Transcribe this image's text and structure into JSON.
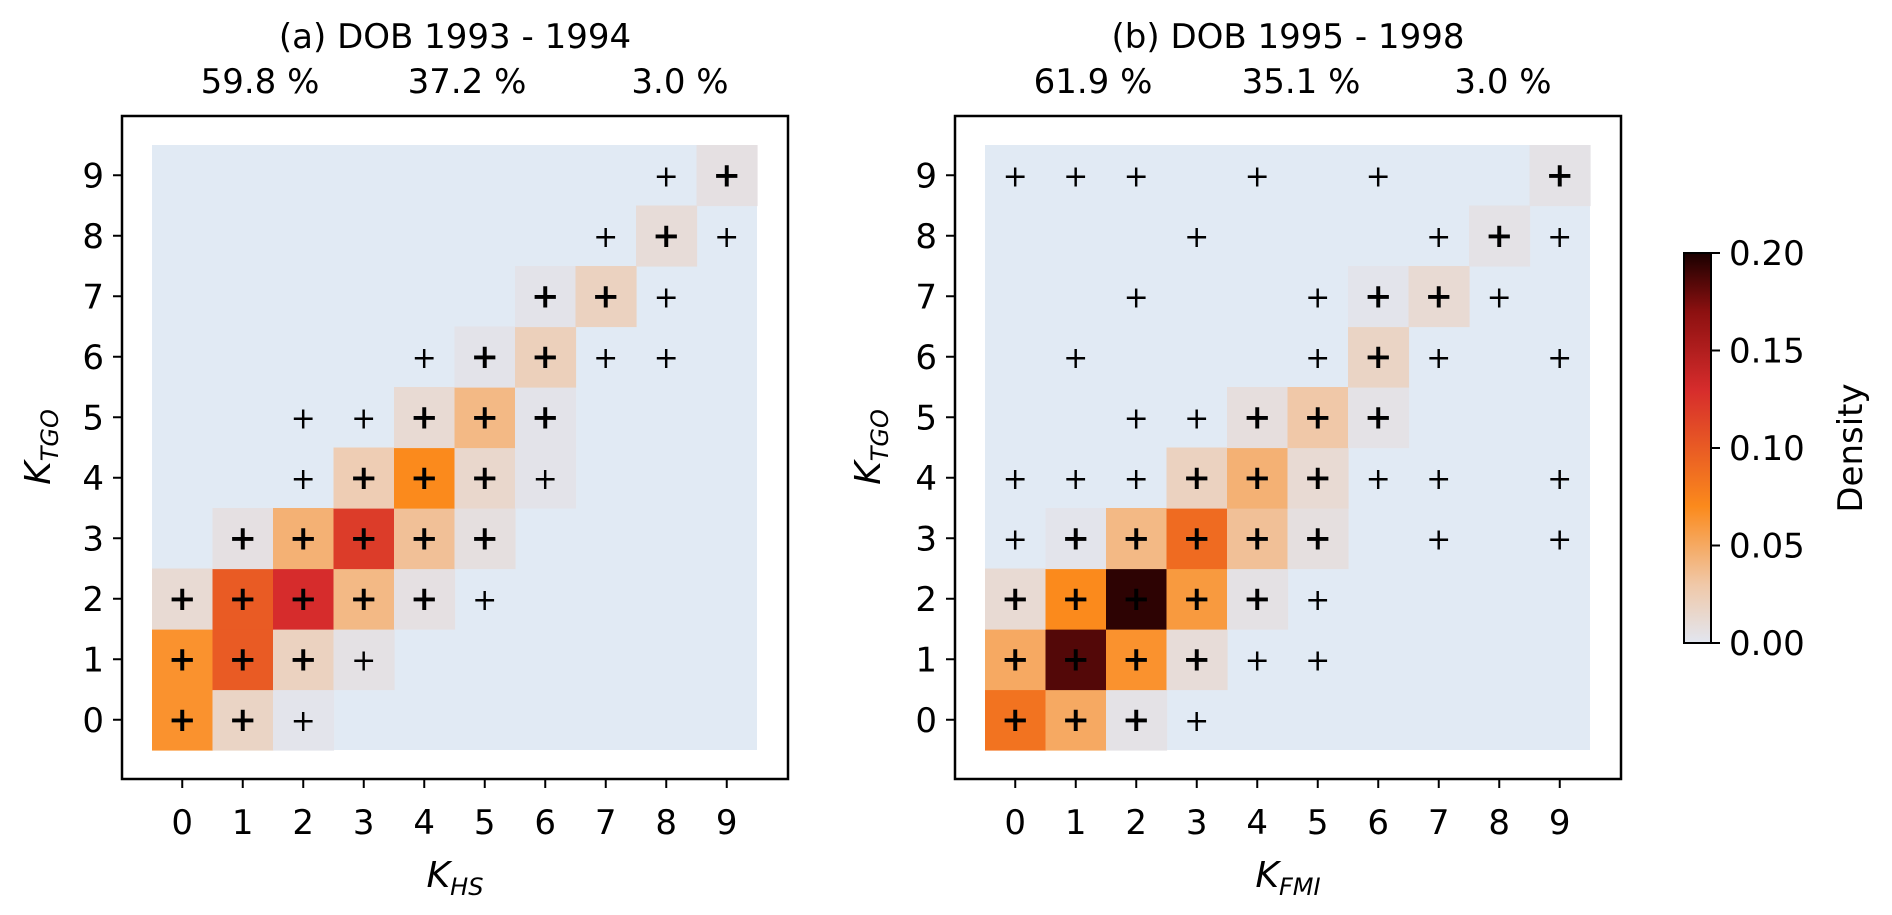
{
  "chart_data": [
    {
      "type": "heatmap",
      "title": "(a) DOB 1993 - 1994",
      "percentages": [
        "59.8 %",
        "37.2 %",
        "3.0 %"
      ],
      "xlabel_main": "K",
      "xlabel_sub": "HS",
      "ylabel_main": "K",
      "ylabel_sub": "TGO",
      "x_ticks": [
        "0",
        "1",
        "2",
        "3",
        "4",
        "5",
        "6",
        "7",
        "8",
        "9"
      ],
      "y_ticks": [
        "0",
        "1",
        "2",
        "3",
        "4",
        "5",
        "6",
        "7",
        "8",
        "9"
      ],
      "cells": [
        {
          "x": 0,
          "y": 0,
          "v": 0.065,
          "m": 2
        },
        {
          "x": 1,
          "y": 0,
          "v": 0.018,
          "m": 2
        },
        {
          "x": 2,
          "y": 0,
          "v": 0.002,
          "m": 1
        },
        {
          "x": 0,
          "y": 1,
          "v": 0.065,
          "m": 2
        },
        {
          "x": 1,
          "y": 1,
          "v": 0.1,
          "m": 2
        },
        {
          "x": 2,
          "y": 1,
          "v": 0.02,
          "m": 2
        },
        {
          "x": 3,
          "y": 1,
          "v": 0.005,
          "m": 1
        },
        {
          "x": 0,
          "y": 2,
          "v": 0.012,
          "m": 2
        },
        {
          "x": 1,
          "y": 2,
          "v": 0.1,
          "m": 2
        },
        {
          "x": 2,
          "y": 2,
          "v": 0.13,
          "m": 2
        },
        {
          "x": 3,
          "y": 2,
          "v": 0.04,
          "m": 2
        },
        {
          "x": 4,
          "y": 2,
          "v": 0.006,
          "m": 2
        },
        {
          "x": 5,
          "y": 2,
          "v": 0.0,
          "m": 1
        },
        {
          "x": 1,
          "y": 3,
          "v": 0.006,
          "m": 2
        },
        {
          "x": 2,
          "y": 3,
          "v": 0.045,
          "m": 2
        },
        {
          "x": 3,
          "y": 3,
          "v": 0.12,
          "m": 2
        },
        {
          "x": 4,
          "y": 3,
          "v": 0.035,
          "m": 2
        },
        {
          "x": 5,
          "y": 3,
          "v": 0.007,
          "m": 2
        },
        {
          "x": 2,
          "y": 4,
          "v": 0.0,
          "m": 1
        },
        {
          "x": 3,
          "y": 4,
          "v": 0.025,
          "m": 2
        },
        {
          "x": 4,
          "y": 4,
          "v": 0.07,
          "m": 2
        },
        {
          "x": 5,
          "y": 4,
          "v": 0.015,
          "m": 2
        },
        {
          "x": 6,
          "y": 4,
          "v": 0.003,
          "m": 1
        },
        {
          "x": 2,
          "y": 5,
          "v": 0.0,
          "m": 1
        },
        {
          "x": 3,
          "y": 5,
          "v": 0.0,
          "m": 1
        },
        {
          "x": 4,
          "y": 5,
          "v": 0.012,
          "m": 2
        },
        {
          "x": 5,
          "y": 5,
          "v": 0.04,
          "m": 2
        },
        {
          "x": 6,
          "y": 5,
          "v": 0.003,
          "m": 2
        },
        {
          "x": 4,
          "y": 6,
          "v": 0.0,
          "m": 1
        },
        {
          "x": 5,
          "y": 6,
          "v": 0.003,
          "m": 2
        },
        {
          "x": 6,
          "y": 6,
          "v": 0.022,
          "m": 2
        },
        {
          "x": 7,
          "y": 6,
          "v": 0.0,
          "m": 1
        },
        {
          "x": 8,
          "y": 6,
          "v": 0.0,
          "m": 1
        },
        {
          "x": 6,
          "y": 7,
          "v": 0.003,
          "m": 2
        },
        {
          "x": 7,
          "y": 7,
          "v": 0.02,
          "m": 2
        },
        {
          "x": 8,
          "y": 7,
          "v": 0.0,
          "m": 1
        },
        {
          "x": 7,
          "y": 8,
          "v": 0.0,
          "m": 1
        },
        {
          "x": 8,
          "y": 8,
          "v": 0.01,
          "m": 2
        },
        {
          "x": 9,
          "y": 8,
          "v": 0.0,
          "m": 1
        },
        {
          "x": 8,
          "y": 9,
          "v": 0.0,
          "m": 1
        },
        {
          "x": 9,
          "y": 9,
          "v": 0.006,
          "m": 2
        }
      ]
    },
    {
      "type": "heatmap",
      "title": "(b) DOB 1995 - 1998",
      "percentages": [
        "61.9 %",
        "35.1 %",
        "3.0 %"
      ],
      "xlabel_main": "K",
      "xlabel_sub": "FMI",
      "ylabel_main": "K",
      "ylabel_sub": "TGO",
      "x_ticks": [
        "0",
        "1",
        "2",
        "3",
        "4",
        "5",
        "6",
        "7",
        "8",
        "9"
      ],
      "y_ticks": [
        "0",
        "1",
        "2",
        "3",
        "4",
        "5",
        "6",
        "7",
        "8",
        "9"
      ],
      "cells": [
        {
          "x": 0,
          "y": 0,
          "v": 0.085,
          "m": 2
        },
        {
          "x": 1,
          "y": 0,
          "v": 0.05,
          "m": 2
        },
        {
          "x": 2,
          "y": 0,
          "v": 0.004,
          "m": 2
        },
        {
          "x": 3,
          "y": 0,
          "v": 0.0,
          "m": 1
        },
        {
          "x": 0,
          "y": 1,
          "v": 0.05,
          "m": 2
        },
        {
          "x": 1,
          "y": 1,
          "v": 0.185,
          "m": 2
        },
        {
          "x": 2,
          "y": 1,
          "v": 0.065,
          "m": 2
        },
        {
          "x": 3,
          "y": 1,
          "v": 0.01,
          "m": 2
        },
        {
          "x": 4,
          "y": 1,
          "v": 0.0,
          "m": 1
        },
        {
          "x": 5,
          "y": 1,
          "v": 0.0,
          "m": 1
        },
        {
          "x": 0,
          "y": 2,
          "v": 0.012,
          "m": 2
        },
        {
          "x": 1,
          "y": 2,
          "v": 0.07,
          "m": 2
        },
        {
          "x": 2,
          "y": 2,
          "v": 0.195,
          "m": 2
        },
        {
          "x": 3,
          "y": 2,
          "v": 0.06,
          "m": 2
        },
        {
          "x": 4,
          "y": 2,
          "v": 0.005,
          "m": 2
        },
        {
          "x": 5,
          "y": 2,
          "v": 0.0,
          "m": 1
        },
        {
          "x": 0,
          "y": 3,
          "v": 0.0,
          "m": 1
        },
        {
          "x": 1,
          "y": 3,
          "v": 0.002,
          "m": 2
        },
        {
          "x": 2,
          "y": 3,
          "v": 0.04,
          "m": 2
        },
        {
          "x": 3,
          "y": 3,
          "v": 0.09,
          "m": 2
        },
        {
          "x": 4,
          "y": 3,
          "v": 0.035,
          "m": 2
        },
        {
          "x": 5,
          "y": 3,
          "v": 0.007,
          "m": 2
        },
        {
          "x": 7,
          "y": 3,
          "v": 0.0,
          "m": 1
        },
        {
          "x": 9,
          "y": 3,
          "v": 0.0,
          "m": 1
        },
        {
          "x": 0,
          "y": 4,
          "v": 0.0,
          "m": 1
        },
        {
          "x": 1,
          "y": 4,
          "v": 0.0,
          "m": 1
        },
        {
          "x": 2,
          "y": 4,
          "v": 0.0,
          "m": 1
        },
        {
          "x": 3,
          "y": 4,
          "v": 0.02,
          "m": 2
        },
        {
          "x": 4,
          "y": 4,
          "v": 0.045,
          "m": 2
        },
        {
          "x": 5,
          "y": 4,
          "v": 0.012,
          "m": 2
        },
        {
          "x": 6,
          "y": 4,
          "v": 0.0,
          "m": 1
        },
        {
          "x": 7,
          "y": 4,
          "v": 0.0,
          "m": 1
        },
        {
          "x": 9,
          "y": 4,
          "v": 0.0,
          "m": 1
        },
        {
          "x": 2,
          "y": 5,
          "v": 0.0,
          "m": 1
        },
        {
          "x": 3,
          "y": 5,
          "v": 0.0,
          "m": 1
        },
        {
          "x": 4,
          "y": 5,
          "v": 0.008,
          "m": 2
        },
        {
          "x": 5,
          "y": 5,
          "v": 0.03,
          "m": 2
        },
        {
          "x": 6,
          "y": 5,
          "v": 0.004,
          "m": 2
        },
        {
          "x": 1,
          "y": 6,
          "v": 0.0,
          "m": 1
        },
        {
          "x": 5,
          "y": 6,
          "v": 0.0,
          "m": 1
        },
        {
          "x": 6,
          "y": 6,
          "v": 0.018,
          "m": 2
        },
        {
          "x": 7,
          "y": 6,
          "v": 0.0,
          "m": 1
        },
        {
          "x": 9,
          "y": 6,
          "v": 0.0,
          "m": 1
        },
        {
          "x": 2,
          "y": 7,
          "v": 0.0,
          "m": 1
        },
        {
          "x": 5,
          "y": 7,
          "v": 0.0,
          "m": 1
        },
        {
          "x": 6,
          "y": 7,
          "v": 0.002,
          "m": 2
        },
        {
          "x": 7,
          "y": 7,
          "v": 0.012,
          "m": 2
        },
        {
          "x": 8,
          "y": 7,
          "v": 0.0,
          "m": 1
        },
        {
          "x": 3,
          "y": 8,
          "v": 0.0,
          "m": 1
        },
        {
          "x": 7,
          "y": 8,
          "v": 0.0,
          "m": 1
        },
        {
          "x": 8,
          "y": 8,
          "v": 0.004,
          "m": 2
        },
        {
          "x": 9,
          "y": 8,
          "v": 0.0,
          "m": 1
        },
        {
          "x": 0,
          "y": 9,
          "v": 0.0,
          "m": 1
        },
        {
          "x": 1,
          "y": 9,
          "v": 0.0,
          "m": 1
        },
        {
          "x": 2,
          "y": 9,
          "v": 0.0,
          "m": 1
        },
        {
          "x": 4,
          "y": 9,
          "v": 0.0,
          "m": 1
        },
        {
          "x": 6,
          "y": 9,
          "v": 0.0,
          "m": 1
        },
        {
          "x": 9,
          "y": 9,
          "v": 0.004,
          "m": 2
        }
      ]
    }
  ],
  "colorbar": {
    "label": "Density",
    "min": 0.0,
    "max": 0.2,
    "ticks": [
      "0.00",
      "0.05",
      "0.10",
      "0.15",
      "0.20"
    ],
    "tick_values": [
      0.0,
      0.05,
      0.1,
      0.15,
      0.2
    ]
  },
  "colors": {
    "background_cell": "#e1eaf4",
    "frame": "#000000",
    "colormap": [
      "#e2e6f0",
      "#f0c8a8",
      "#fb8a1c",
      "#d62c2c",
      "#8c1010",
      "#1a0000"
    ]
  }
}
